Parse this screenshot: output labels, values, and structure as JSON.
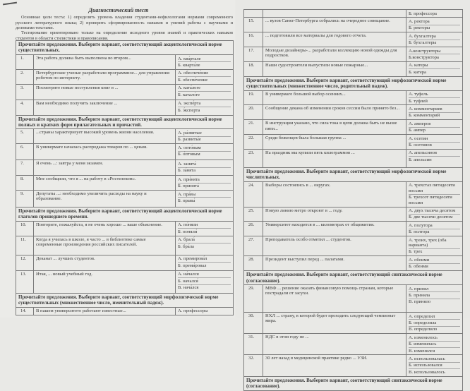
{
  "left_page": {
    "title": "Диагностический тест",
    "intro": [
      "Основные цели теста: 1) определить уровень владения студентами-нефилологами нормами современного русского литературного языка; 2) проверить сформированность навыков и умений работы с научными и деловыми текстами.",
      "Тестирование ориентировано только на определение исходного уровня знаний и практических навыков студентов в области стилистики и правописания."
    ],
    "rows": [
      {
        "section": "Прочитайте предложения. Выберите вариант, соответствующий акцентологической норме существительных."
      },
      {
        "num": "1.",
        "q": "Эта работа должна быть выполнена во втором...",
        "opts": [
          "А. ква́ртале",
          "Б. кварта́ле"
        ]
      },
      {
        "num": "2.",
        "q": "Петербургские ученые разработали программное... для управления роботом по интернету.",
        "opts": [
          "А. обеспече́ние",
          "Б. обеспе́чение"
        ]
      },
      {
        "num": "3.",
        "q": "Посмотрите новые поступления книг в ...",
        "opts": [
          "А. ката́логе",
          "Б. катало́ге"
        ]
      },
      {
        "num": "4.",
        "q": "Вам необходимо получить заключение ...",
        "opts": [
          "А. экспе́рта",
          "Б. э́ксперта"
        ]
      },
      {
        "section": "Прочитайте предложения. Выберите вариант, соответствующий акцентологической норме полных и кратких форм прилагательных и причастий."
      },
      {
        "num": "5.",
        "q": "...страны характеризует высокий уровень жизни населения.",
        "opts": [
          "А. ра́звитые",
          "Б. развиты́е"
        ]
      },
      {
        "num": "6.",
        "q": "В универмаге началась распродажа товаров по ... ценам.",
        "opts": [
          "А. опто́вым",
          "Б. о́птовым"
        ]
      },
      {
        "num": "7.",
        "q": "Я очень ...: завтра у меня экзамен.",
        "opts": [
          "А. занята́",
          "Б. за́нята"
        ]
      },
      {
        "num": "8.",
        "q": "Мне сообщили, что я ... на работу в «Ростелеком».",
        "opts": [
          "А. при́нята",
          "Б. принята́"
        ]
      },
      {
        "num": "9.",
        "q": "Депутаты ...: необходимо увеличить расходы на науку и образование.",
        "opts": [
          "А. пра́вы",
          "Б. правы́"
        ]
      },
      {
        "section": "Прочитайте предложения. Выберите вариант, соответствующий акцентологической норме глаголов прошедшего времени."
      },
      {
        "num": "10.",
        "q": "Повторите, пожалуйста, я не очень хорошо ... ваше объяснение.",
        "opts": [
          "А. по́няли",
          "Б. поняли́"
        ]
      },
      {
        "num": "11.",
        "q": "Когда я училась в школе, я часто ... в библиотеке самые современные произведения российских писателей.",
        "opts": [
          "А. брала́",
          "Б. бра́ла"
        ]
      },
      {
        "num": "12.",
        "q": "Деканат ... лучших студентов.",
        "opts": [
          "А. премирова́л",
          "Б. преми́ровал"
        ]
      },
      {
        "num": "13.",
        "q": "Итак, ... новый учебный год.",
        "opts": [
          "А. на́чался",
          "Б. начался́",
          "В. нача́лся"
        ]
      },
      {
        "section": "Прочитайте предложения. Выберите вариант, соответствующий морфологической норме существительных (множественное число, именительный падеж)."
      },
      {
        "num": "14.",
        "q": "В нашем университете работают известные...",
        "opts": [
          "А. профессоры"
        ]
      }
    ]
  },
  "right_page": {
    "rows": [
      {
        "num": "",
        "q": "",
        "opts": [
          "Б. профессора"
        ]
      },
      {
        "num": "15.",
        "q": "... вузов Санкт-Петербурга собрались на очередное совещание.",
        "opts": [
          "А. ректора",
          "Б. ректоры"
        ]
      },
      {
        "num": "16.",
        "q": "... подготовили все материалы для годового отчета.",
        "opts": [
          "А. бухгалтера",
          "Б. бухгалтеры"
        ]
      },
      {
        "num": "17.",
        "q": "Молодые дизайнеры-... разработали коллекцию новой одежды для подростков.",
        "opts": [
          "А.конструкторы",
          "Б.конструктора"
        ]
      },
      {
        "num": "18.",
        "q": "Наши судостроители выпустили новые пожарные...",
        "opts": [
          "А. катеры",
          "Б. катера"
        ]
      },
      {
        "section": "Прочитайте предложения. Выберите вариант, соответствующий морфологической норме существительных (множественное число, родительный падеж)."
      },
      {
        "num": "19.",
        "q": "В универмаге большой выбор осенних...",
        "opts": [
          "А. туфель",
          "Б. туфлей"
        ]
      },
      {
        "num": "20.",
        "q": "Сообщение декана об изменении сроков сессии было принято без...",
        "opts": [
          "А. комментариев",
          "Б. комментарий"
        ]
      },
      {
        "num": "21.",
        "q": "В инструкции указано, что сила тока в цепи должна быть не выше пяти...",
        "opts": [
          "А. амперов",
          "Б. ампер"
        ]
      },
      {
        "num": "22.",
        "q": "Среди беженцев была большая группа ...",
        "opts": [
          "А. осетин",
          "Б. осетинов"
        ]
      },
      {
        "num": "23.",
        "q": "На праздник мы купили пять килограммов ...",
        "opts": [
          "А. апельсинов",
          "Б. апельсин"
        ]
      },
      {
        "section": "Прочитайте предложения. Выберите вариант, соответствующий морфологической норме числительных."
      },
      {
        "num": "24.",
        "q": "Выборы состоялись в ... округах.",
        "opts": [
          "А. трехстах пятидесяти восьми",
          "Б. трехсот пятидесяти восьми"
        ]
      },
      {
        "num": "25.",
        "q": "Новую линию метро откроют в ... году.",
        "opts": [
          "А. двух тысяча десятом",
          "Б. две тысячи десятом"
        ]
      },
      {
        "num": "26.",
        "q": "Университет находится в ... километрах от общежития.",
        "opts": [
          "А. полутора",
          "Б. полтора"
        ]
      },
      {
        "num": "27.",
        "q": "Преподаватель особо отметил ... студентов.",
        "opts": [
          "А. троих, трех (оба варианта)",
          "Б. трех"
        ]
      },
      {
        "num": "28.",
        "q": "Президент выступил перед ... палатами.",
        "opts": [
          "А. обоими",
          "Б. обеими"
        ]
      },
      {
        "section": "Прочитайте предложения. Выберите вариант, соответствующий синтаксической норме (согласование)."
      },
      {
        "num": "29.",
        "q": "МВФ ... решение оказать финансовую помощь странам, которые пострадали от засухи.",
        "opts": [
          "А. принял",
          "Б. приняла",
          "В. приняло"
        ]
      },
      {
        "num": "30.",
        "q": "НХЛ ... страну, в которой будет проходить следующий чемпионат мира.",
        "opts": [
          "А. определил",
          "Б. определила",
          "В. определило"
        ]
      },
      {
        "num": "31.",
        "q": "НДС в этом году не ...",
        "opts": [
          "А. изменилось",
          "Б. изменилась",
          "В. изменился"
        ]
      },
      {
        "num": "32.",
        "q": "30 лет назад в медицинской практике редко ... УЗИ.",
        "opts": [
          "А. использовалась",
          "Б. использовался",
          "В. использовалось"
        ]
      },
      {
        "section": "Прочитайте предложения. Выберите вариант, соответствующий синтаксической норме (согласование)."
      }
    ]
  }
}
